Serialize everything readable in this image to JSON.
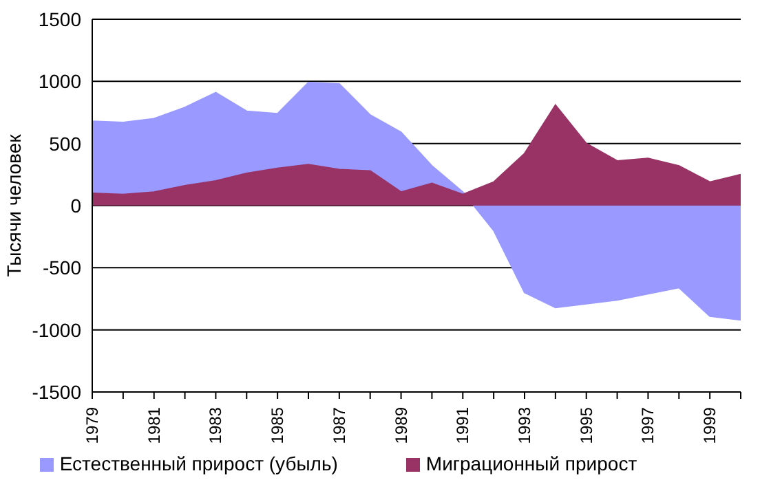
{
  "chart_data": {
    "type": "area",
    "ylabel": "Тысячи человек",
    "categories": [
      "1979",
      null,
      "1981",
      null,
      "1983",
      null,
      "1985",
      null,
      "1987",
      null,
      "1989",
      null,
      "1991",
      null,
      "1993",
      null,
      "1995",
      null,
      "1997",
      null,
      "1999",
      null
    ],
    "series": [
      {
        "name": "Естественный прирост (убыль)",
        "color": "#9999ff",
        "values": [
          680,
          670,
          700,
          790,
          910,
          760,
          740,
          990,
          980,
          730,
          590,
          320,
          110,
          -200,
          -700,
          -820,
          -790,
          -760,
          -710,
          -660,
          -890,
          -920
        ]
      },
      {
        "name": "Миграционный прирост",
        "color": "#993366",
        "values": [
          100,
          90,
          110,
          160,
          200,
          260,
          300,
          330,
          290,
          280,
          110,
          180,
          90,
          190,
          420,
          810,
          500,
          360,
          380,
          320,
          190,
          250
        ]
      }
    ],
    "ylim": [
      -1500,
      1500
    ],
    "yticks": [
      -1500,
      -1000,
      -500,
      0,
      500,
      1000,
      1500
    ],
    "grid": "y",
    "legend": "bottom"
  }
}
